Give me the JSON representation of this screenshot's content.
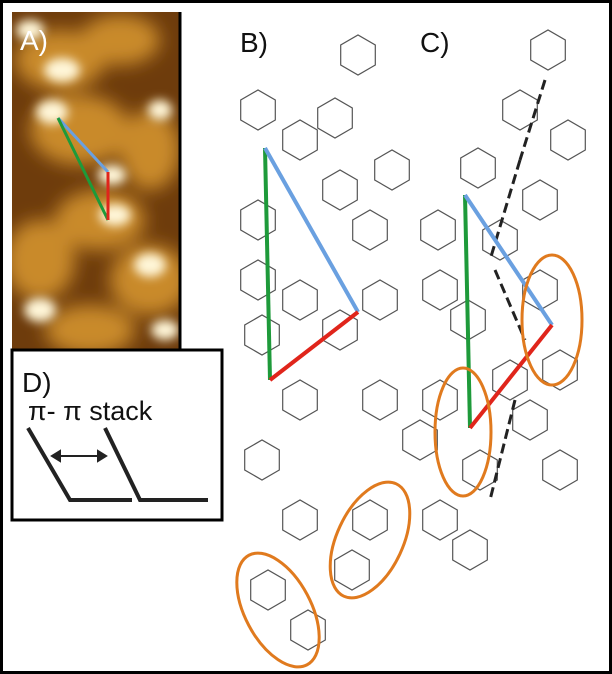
{
  "panels": {
    "a": {
      "label": "A)"
    },
    "b": {
      "label": "B)"
    },
    "c": {
      "label": "C)"
    },
    "d": {
      "label": "D)",
      "caption": "π- π stack"
    }
  }
}
